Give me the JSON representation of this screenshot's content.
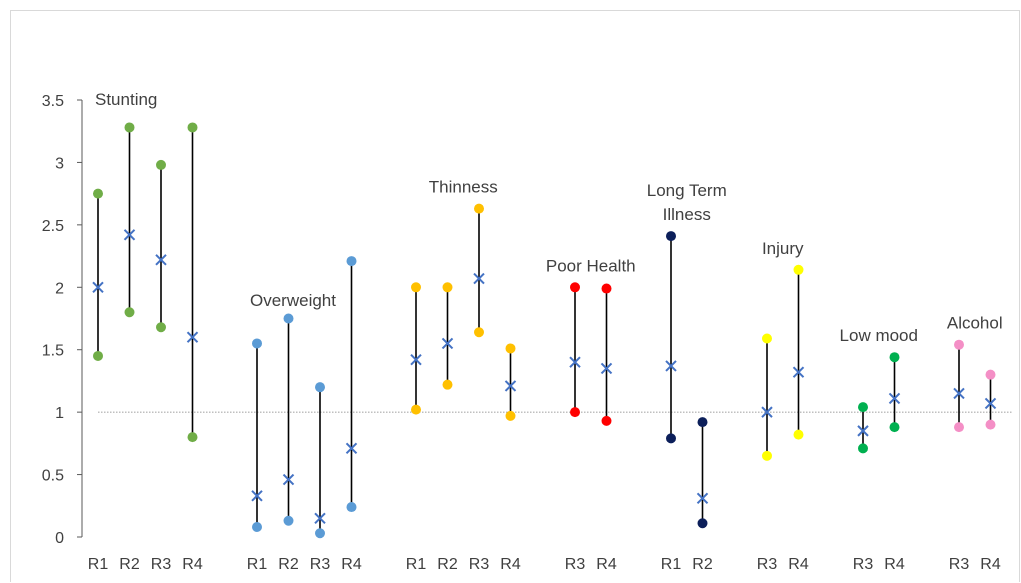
{
  "chart_data": {
    "type": "range",
    "ylim": [
      0,
      3.5
    ],
    "yticks": [
      0,
      0.5,
      1,
      1.5,
      2,
      2.5,
      3,
      3.5
    ],
    "reference_line": 1,
    "marker_legend": {
      "dot": "range end",
      "cross": "estimate"
    },
    "groups": [
      {
        "name": "Stunting",
        "color": "#70ad47",
        "items": [
          {
            "label": "R1",
            "low": 1.45,
            "high": 2.75,
            "mid": 2.0
          },
          {
            "label": "R2",
            "low": 1.8,
            "high": 3.28,
            "mid": 2.42
          },
          {
            "label": "R3",
            "low": 1.68,
            "high": 2.98,
            "mid": 2.22
          },
          {
            "label": "R4",
            "low": 0.8,
            "high": 3.28,
            "mid": 1.6
          }
        ]
      },
      {
        "name": "Overweight",
        "color": "#5b9bd5",
        "items": [
          {
            "label": "R1",
            "low": 0.08,
            "high": 1.55,
            "mid": 0.33
          },
          {
            "label": "R2",
            "low": 0.13,
            "high": 1.75,
            "mid": 0.46
          },
          {
            "label": "R3",
            "low": 0.03,
            "high": 1.2,
            "mid": 0.15
          },
          {
            "label": "R4",
            "low": 0.24,
            "high": 2.21,
            "mid": 0.71
          }
        ]
      },
      {
        "name": "Thinness",
        "color": "#ffc000",
        "items": [
          {
            "label": "R1",
            "low": 1.02,
            "high": 2.0,
            "mid": 1.42
          },
          {
            "label": "R2",
            "low": 1.22,
            "high": 2.0,
            "mid": 1.55
          },
          {
            "label": "R3",
            "low": 1.64,
            "high": 2.63,
            "mid": 2.07
          },
          {
            "label": "R4",
            "low": 0.97,
            "high": 1.51,
            "mid": 1.21
          }
        ]
      },
      {
        "name": "Poor Health",
        "color": "#ff0000",
        "items": [
          {
            "label": "R3",
            "low": 1.0,
            "high": 2.0,
            "mid": 1.4
          },
          {
            "label": "R4",
            "low": 0.93,
            "high": 1.99,
            "mid": 1.35
          }
        ]
      },
      {
        "name": "Long Term Illness",
        "color": "#0c1f5a",
        "items": [
          {
            "label": "R1",
            "low": 0.79,
            "high": 2.41,
            "mid": 1.37
          },
          {
            "label": "R2",
            "low": 0.11,
            "high": 0.92,
            "mid": 0.31
          }
        ]
      },
      {
        "name": "Injury",
        "color": "#ffff00",
        "items": [
          {
            "label": "R3",
            "low": 0.65,
            "high": 1.59,
            "mid": 1.0
          },
          {
            "label": "R4",
            "low": 0.82,
            "high": 2.14,
            "mid": 1.32
          }
        ]
      },
      {
        "name": "Low mood",
        "color": "#00b050",
        "items": [
          {
            "label": "R3",
            "low": 0.71,
            "high": 1.04,
            "mid": 0.85
          },
          {
            "label": "R4",
            "low": 0.88,
            "high": 1.44,
            "mid": 1.11
          }
        ]
      },
      {
        "name": "Alcohol",
        "color": "#f48fc6",
        "items": [
          {
            "label": "R3",
            "low": 0.88,
            "high": 1.54,
            "mid": 1.15
          },
          {
            "label": "R4",
            "low": 0.9,
            "high": 1.3,
            "mid": 1.07
          }
        ]
      }
    ]
  }
}
